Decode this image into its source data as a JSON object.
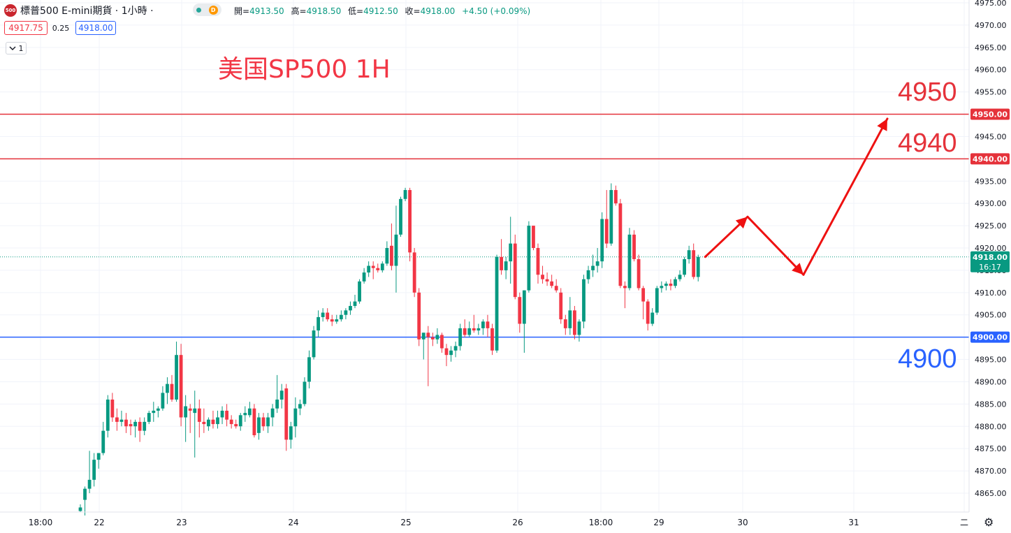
{
  "header": {
    "symbol_badge": "500",
    "symbol_title": "標普500 E-mini期貨 · 1小時 ·",
    "status_badge": "D",
    "ohlc": [
      {
        "label": "開=",
        "value": "4913.50"
      },
      {
        "label": "高=",
        "value": "4918.50"
      },
      {
        "label": "低=",
        "value": "4912.50"
      },
      {
        "label": "收=",
        "value": "4918.00"
      },
      {
        "label": "",
        "value": "+4.50 (+0.09%)"
      }
    ],
    "sell_price": "4917.75",
    "spread": "0.25",
    "buy_price": "4918.00",
    "indicator_toggle": "1",
    "toggle_icon": "chevron-down-icon"
  },
  "colors": {
    "up": "#089981",
    "down": "#f23645",
    "resistance": "#e5323a",
    "support": "#2962ff",
    "arrow": "#ee1111",
    "title": "#f23645"
  },
  "chart_data": {
    "type": "candlestick",
    "title": "美国SP500 1H",
    "y_range": [
      4861.3,
      4975.8
    ],
    "y_ticks": [
      "4975.00",
      "4970.00",
      "4965.00",
      "4960.00",
      "4955.00",
      "4950.00",
      "4945.00",
      "4940.00",
      "4935.00",
      "4930.00",
      "4925.00",
      "4920.00",
      "4915.00",
      "4910.00",
      "4905.00",
      "4900.00",
      "4895.00",
      "4890.00",
      "4885.00",
      "4880.00",
      "4875.00",
      "4870.00",
      "4865.00"
    ],
    "x_ticks": [
      "18:00",
      "22",
      "23",
      "24",
      "25",
      "26",
      "18:00",
      "29",
      "30",
      "31",
      "二"
    ],
    "horizontal_lines": [
      {
        "price": 4950.0,
        "label": "4950.00",
        "annotation": "4950",
        "color": "#e5323a"
      },
      {
        "price": 4940.0,
        "label": "4940.00",
        "annotation": "4940",
        "color": "#e5323a"
      },
      {
        "price": 4900.0,
        "label": "4900.00",
        "annotation": "4900",
        "color": "#2962ff"
      }
    ],
    "last_price": {
      "label": "4918.00",
      "countdown": "16:17"
    },
    "forecast_path": [
      4918.0,
      4927.0,
      4914.0,
      4949.0
    ],
    "candles": [
      [
        4861.0,
        4862.5,
        4860.8,
        4861.8
      ],
      [
        4863.5,
        4866.5,
        4860.0,
        4866.0
      ],
      [
        4866.0,
        4874.5,
        4865.0,
        4868.0
      ],
      [
        4868.0,
        4874.0,
        4866.5,
        4872.5
      ],
      [
        4872.5,
        4874.0,
        4870.5,
        4874.0
      ],
      [
        4874.0,
        4881.0,
        4873.5,
        4879.0
      ],
      [
        4879.0,
        4887.0,
        4877.5,
        4886.0
      ],
      [
        4886.0,
        4887.5,
        4881.0,
        4882.0
      ],
      [
        4882.0,
        4884.0,
        4879.0,
        4881.0
      ],
      [
        4881.0,
        4883.5,
        4880.0,
        4881.5
      ],
      [
        4881.5,
        4883.0,
        4878.5,
        4880.0
      ],
      [
        4880.5,
        4881.5,
        4878.0,
        4880.0
      ],
      [
        4880.0,
        4881.5,
        4877.5,
        4881.0
      ],
      [
        4881.0,
        4882.0,
        4876.5,
        4879.0
      ],
      [
        4879.0,
        4882.0,
        4878.0,
        4881.0
      ],
      [
        4881.0,
        4883.5,
        4880.5,
        4883.0
      ],
      [
        4883.0,
        4885.5,
        4881.0,
        4883.5
      ],
      [
        4883.5,
        4884.5,
        4882.0,
        4884.0
      ],
      [
        4884.0,
        4889.0,
        4883.5,
        4887.5
      ],
      [
        4887.5,
        4891.0,
        4885.0,
        4889.5
      ],
      [
        4889.5,
        4891.5,
        4885.5,
        4886.0
      ],
      [
        4886.0,
        4899.0,
        4885.5,
        4896.0
      ],
      [
        4896.0,
        4898.5,
        4880.0,
        4882.0
      ],
      [
        4882.0,
        4887.0,
        4876.5,
        4884.5
      ],
      [
        4884.0,
        4885.0,
        4878.5,
        4883.5
      ],
      [
        4883.0,
        4888.0,
        4873.0,
        4884.0
      ],
      [
        4884.0,
        4886.0,
        4877.5,
        4881.0
      ],
      [
        4881.0,
        4884.0,
        4878.5,
        4880.5
      ],
      [
        4880.0,
        4882.0,
        4879.0,
        4881.5
      ],
      [
        4881.5,
        4883.5,
        4879.5,
        4880.5
      ],
      [
        4880.5,
        4883.5,
        4879.5,
        4882.0
      ],
      [
        4882.0,
        4884.5,
        4880.5,
        4883.5
      ],
      [
        4883.5,
        4885.0,
        4880.0,
        4881.5
      ],
      [
        4881.5,
        4882.5,
        4879.5,
        4880.5
      ],
      [
        4880.5,
        4881.5,
        4879.5,
        4880.0
      ],
      [
        4880.0,
        4883.0,
        4879.0,
        4882.5
      ],
      [
        4882.5,
        4884.5,
        4881.0,
        4883.0
      ],
      [
        4882.5,
        4885.5,
        4882.0,
        4884.0
      ],
      [
        4884.0,
        4885.0,
        4877.5,
        4878.0
      ],
      [
        4878.5,
        4883.0,
        4877.0,
        4882.0
      ],
      [
        4882.0,
        4883.0,
        4879.0,
        4880.0
      ],
      [
        4880.0,
        4883.0,
        4878.5,
        4882.0
      ],
      [
        4882.0,
        4885.0,
        4880.0,
        4884.0
      ],
      [
        4884.0,
        4891.5,
        4883.0,
        4886.0
      ],
      [
        4886.0,
        4889.5,
        4884.0,
        4888.0
      ],
      [
        4888.5,
        4889.5,
        4874.5,
        4877.0
      ],
      [
        4877.0,
        4881.0,
        4875.0,
        4880.0
      ],
      [
        4880.0,
        4886.5,
        4877.5,
        4884.0
      ],
      [
        4884.0,
        4886.0,
        4882.5,
        4885.0
      ],
      [
        4885.0,
        4891.0,
        4884.5,
        4890.0
      ],
      [
        4890.0,
        4897.0,
        4888.5,
        4895.5
      ],
      [
        4895.5,
        4902.5,
        4895.0,
        4901.5
      ],
      [
        4901.5,
        4906.0,
        4900.0,
        4904.5
      ],
      [
        4904.5,
        4906.5,
        4903.5,
        4905.5
      ],
      [
        4905.5,
        4906.5,
        4903.5,
        4904.0
      ],
      [
        4904.0,
        4905.0,
        4902.5,
        4903.5
      ],
      [
        4903.5,
        4905.0,
        4903.0,
        4904.0
      ],
      [
        4904.0,
        4906.0,
        4903.5,
        4905.0
      ],
      [
        4905.0,
        4906.5,
        4904.0,
        4906.0
      ],
      [
        4906.0,
        4908.0,
        4905.0,
        4907.0
      ],
      [
        4907.0,
        4909.5,
        4906.5,
        4908.0
      ],
      [
        4908.0,
        4913.0,
        4907.5,
        4912.5
      ],
      [
        4912.5,
        4915.5,
        4912.0,
        4914.5
      ],
      [
        4914.5,
        4917.0,
        4913.5,
        4916.0
      ],
      [
        4916.0,
        4917.0,
        4913.0,
        4915.5
      ],
      [
        4915.5,
        4916.5,
        4914.5,
        4915.0
      ],
      [
        4915.0,
        4917.0,
        4914.5,
        4916.5
      ],
      [
        4916.5,
        4921.5,
        4916.0,
        4920.0
      ],
      [
        4920.5,
        4925.5,
        4915.0,
        4916.0
      ],
      [
        4916.0,
        4929.5,
        4910.0,
        4923.0
      ],
      [
        4923.0,
        4931.5,
        4922.5,
        4931.0
      ],
      [
        4931.0,
        4933.5,
        4930.5,
        4933.0
      ],
      [
        4933.0,
        4933.5,
        4917.0,
        4919.0
      ],
      [
        4919.0,
        4920.0,
        4909.0,
        4910.0
      ],
      [
        4910.0,
        4911.0,
        4898.0,
        4899.5
      ],
      [
        4899.5,
        4901.0,
        4895.0,
        4901.0
      ],
      [
        4901.0,
        4902.5,
        4889.0,
        4900.0
      ],
      [
        4900.0,
        4901.0,
        4898.0,
        4899.5
      ],
      [
        4899.5,
        4902.0,
        4898.5,
        4900.5
      ],
      [
        4900.5,
        4901.0,
        4896.5,
        4897.5
      ],
      [
        4897.5,
        4898.5,
        4893.5,
        4896.0
      ],
      [
        4896.0,
        4898.0,
        4894.5,
        4897.0
      ],
      [
        4897.0,
        4899.0,
        4895.5,
        4898.0
      ],
      [
        4898.0,
        4903.0,
        4897.0,
        4902.0
      ],
      [
        4902.0,
        4904.0,
        4900.0,
        4900.5
      ],
      [
        4900.5,
        4903.5,
        4900.0,
        4902.0
      ],
      [
        4902.0,
        4905.0,
        4901.0,
        4901.5
      ],
      [
        4901.5,
        4903.0,
        4900.5,
        4902.0
      ],
      [
        4902.0,
        4904.0,
        4900.5,
        4903.5
      ],
      [
        4903.5,
        4905.0,
        4900.0,
        4902.0
      ],
      [
        4902.0,
        4903.0,
        4896.0,
        4897.0
      ],
      [
        4897.0,
        4918.5,
        4896.5,
        4918.0
      ],
      [
        4918.0,
        4922.0,
        4914.0,
        4915.0
      ],
      [
        4915.0,
        4918.0,
        4913.0,
        4917.0
      ],
      [
        4917.0,
        4927.0,
        4912.0,
        4921.0
      ],
      [
        4921.0,
        4923.0,
        4908.5,
        4909.0
      ],
      [
        4909.0,
        4910.0,
        4901.0,
        4903.0
      ],
      [
        4903.0,
        4910.5,
        4896.5,
        4910.5
      ],
      [
        4910.5,
        4926.0,
        4910.0,
        4925.0
      ],
      [
        4925.0,
        4925.0,
        4919.5,
        4920.0
      ],
      [
        4920.0,
        4921.0,
        4912.0,
        4914.0
      ],
      [
        4914.0,
        4916.0,
        4912.0,
        4913.0
      ],
      [
        4913.0,
        4914.5,
        4911.5,
        4912.5
      ],
      [
        4912.5,
        4914.0,
        4911.0,
        4911.5
      ],
      [
        4911.5,
        4913.0,
        4910.0,
        4910.5
      ],
      [
        4910.0,
        4911.0,
        4903.0,
        4904.0
      ],
      [
        4904.0,
        4905.0,
        4900.5,
        4902.0
      ],
      [
        4902.0,
        4909.0,
        4900.5,
        4906.0
      ],
      [
        4906.0,
        4907.0,
        4899.5,
        4900.5
      ],
      [
        4900.5,
        4904.0,
        4899.0,
        4903.5
      ],
      [
        4903.5,
        4914.0,
        4902.0,
        4913.0
      ],
      [
        4913.0,
        4916.0,
        4912.0,
        4915.0
      ],
      [
        4915.0,
        4918.5,
        4913.5,
        4916.0
      ],
      [
        4916.0,
        4920.0,
        4914.5,
        4917.0
      ],
      [
        4917.0,
        4928.0,
        4915.5,
        4926.5
      ],
      [
        4926.5,
        4933.0,
        4920.0,
        4921.0
      ],
      [
        4921.0,
        4934.5,
        4920.5,
        4933.0
      ],
      [
        4933.0,
        4934.0,
        4929.5,
        4930.0
      ],
      [
        4930.0,
        4931.0,
        4911.0,
        4911.5
      ],
      [
        4911.5,
        4912.5,
        4906.5,
        4911.0
      ],
      [
        4911.0,
        4924.5,
        4910.5,
        4923.0
      ],
      [
        4923.0,
        4924.0,
        4917.0,
        4917.5
      ],
      [
        4917.5,
        4918.5,
        4910.5,
        4911.0
      ],
      [
        4911.0,
        4911.5,
        4904.0,
        4908.0
      ],
      [
        4908.0,
        4908.5,
        4901.5,
        4903.0
      ],
      [
        4903.0,
        4906.5,
        4902.5,
        4905.5
      ],
      [
        4905.5,
        4911.5,
        4905.0,
        4911.0
      ],
      [
        4911.0,
        4912.5,
        4910.0,
        4911.5
      ],
      [
        4911.5,
        4912.5,
        4910.5,
        4912.0
      ],
      [
        4912.0,
        4913.0,
        4910.5,
        4911.5
      ],
      [
        4911.5,
        4913.5,
        4911.0,
        4913.0
      ],
      [
        4913.0,
        4915.0,
        4912.5,
        4914.0
      ],
      [
        4914.0,
        4918.0,
        4913.5,
        4917.5
      ],
      [
        4917.5,
        4920.5,
        4916.5,
        4919.5
      ],
      [
        4919.5,
        4921.0,
        4913.0,
        4913.5
      ],
      [
        4913.5,
        4918.5,
        4912.5,
        4918.0
      ]
    ]
  }
}
